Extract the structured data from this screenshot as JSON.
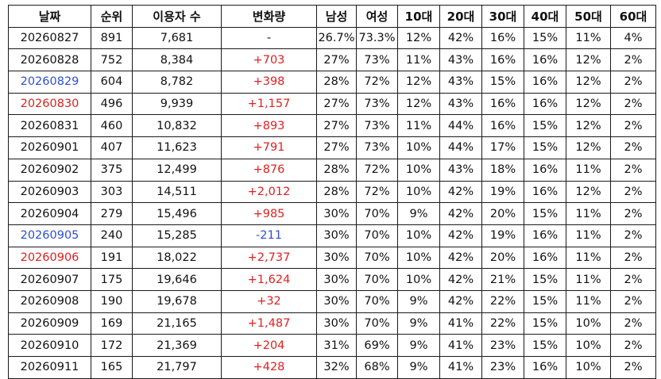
{
  "table": {
    "headers": [
      "날짜",
      "순위",
      "이용자 수",
      "변화량",
      "남성",
      "여성",
      "10대",
      "20대",
      "30대",
      "40대",
      "50대",
      "60대"
    ],
    "rows": [
      {
        "date": "20260827",
        "date_color": "default",
        "rank": "891",
        "users": "7,681",
        "change": "-",
        "change_type": "none",
        "male": "26.7%",
        "female": "73.3%",
        "a10": "12%",
        "a20": "42%",
        "a30": "16%",
        "a40": "15%",
        "a50": "11%",
        "a60": "4%"
      },
      {
        "date": "20260828",
        "date_color": "default",
        "rank": "752",
        "users": "8,384",
        "change": "+703",
        "change_type": "pos",
        "male": "27%",
        "female": "73%",
        "a10": "11%",
        "a20": "43%",
        "a30": "16%",
        "a40": "16%",
        "a50": "12%",
        "a60": "2%"
      },
      {
        "date": "20260829",
        "date_color": "blue",
        "rank": "604",
        "users": "8,782",
        "change": "+398",
        "change_type": "pos",
        "male": "28%",
        "female": "72%",
        "a10": "12%",
        "a20": "43%",
        "a30": "15%",
        "a40": "16%",
        "a50": "12%",
        "a60": "2%"
      },
      {
        "date": "20260830",
        "date_color": "red",
        "rank": "496",
        "users": "9,939",
        "change": "+1,157",
        "change_type": "pos",
        "male": "27%",
        "female": "73%",
        "a10": "12%",
        "a20": "43%",
        "a30": "16%",
        "a40": "16%",
        "a50": "12%",
        "a60": "2%"
      },
      {
        "date": "20260831",
        "date_color": "default",
        "rank": "460",
        "users": "10,832",
        "change": "+893",
        "change_type": "pos",
        "male": "27%",
        "female": "73%",
        "a10": "11%",
        "a20": "44%",
        "a30": "16%",
        "a40": "15%",
        "a50": "12%",
        "a60": "2%"
      },
      {
        "date": "20260901",
        "date_color": "default",
        "rank": "407",
        "users": "11,623",
        "change": "+791",
        "change_type": "pos",
        "male": "27%",
        "female": "73%",
        "a10": "10%",
        "a20": "44%",
        "a30": "17%",
        "a40": "15%",
        "a50": "12%",
        "a60": "2%"
      },
      {
        "date": "20260902",
        "date_color": "default",
        "rank": "375",
        "users": "12,499",
        "change": "+876",
        "change_type": "pos",
        "male": "28%",
        "female": "72%",
        "a10": "10%",
        "a20": "43%",
        "a30": "18%",
        "a40": "16%",
        "a50": "11%",
        "a60": "2%"
      },
      {
        "date": "20260903",
        "date_color": "default",
        "rank": "303",
        "users": "14,511",
        "change": "+2,012",
        "change_type": "pos",
        "male": "28%",
        "female": "72%",
        "a10": "10%",
        "a20": "42%",
        "a30": "19%",
        "a40": "16%",
        "a50": "12%",
        "a60": "2%"
      },
      {
        "date": "20260904",
        "date_color": "default",
        "rank": "279",
        "users": "15,496",
        "change": "+985",
        "change_type": "pos",
        "male": "30%",
        "female": "70%",
        "a10": "9%",
        "a20": "42%",
        "a30": "20%",
        "a40": "15%",
        "a50": "11%",
        "a60": "2%"
      },
      {
        "date": "20260905",
        "date_color": "blue",
        "rank": "240",
        "users": "15,285",
        "change": "-211",
        "change_type": "neg",
        "male": "30%",
        "female": "70%",
        "a10": "10%",
        "a20": "42%",
        "a30": "19%",
        "a40": "16%",
        "a50": "11%",
        "a60": "2%"
      },
      {
        "date": "20260906",
        "date_color": "red",
        "rank": "191",
        "users": "18,022",
        "change": "+2,737",
        "change_type": "pos",
        "male": "30%",
        "female": "70%",
        "a10": "10%",
        "a20": "42%",
        "a30": "20%",
        "a40": "16%",
        "a50": "11%",
        "a60": "2%"
      },
      {
        "date": "20260907",
        "date_color": "default",
        "rank": "175",
        "users": "19,646",
        "change": "+1,624",
        "change_type": "pos",
        "male": "30%",
        "female": "70%",
        "a10": "10%",
        "a20": "42%",
        "a30": "21%",
        "a40": "15%",
        "a50": "11%",
        "a60": "2%"
      },
      {
        "date": "20260908",
        "date_color": "default",
        "rank": "190",
        "users": "19,678",
        "change": "+32",
        "change_type": "pos",
        "male": "30%",
        "female": "70%",
        "a10": "9%",
        "a20": "42%",
        "a30": "22%",
        "a40": "15%",
        "a50": "11%",
        "a60": "2%"
      },
      {
        "date": "20260909",
        "date_color": "default",
        "rank": "169",
        "users": "21,165",
        "change": "+1,487",
        "change_type": "pos",
        "male": "30%",
        "female": "70%",
        "a10": "9%",
        "a20": "41%",
        "a30": "22%",
        "a40": "15%",
        "a50": "10%",
        "a60": "2%"
      },
      {
        "date": "20260910",
        "date_color": "default",
        "rank": "172",
        "users": "21,369",
        "change": "+204",
        "change_type": "pos",
        "male": "31%",
        "female": "69%",
        "a10": "9%",
        "a20": "41%",
        "a30": "23%",
        "a40": "15%",
        "a50": "10%",
        "a60": "2%"
      },
      {
        "date": "20260911",
        "date_color": "default",
        "rank": "165",
        "users": "21,797",
        "change": "+428",
        "change_type": "pos",
        "male": "32%",
        "female": "68%",
        "a10": "9%",
        "a20": "41%",
        "a30": "23%",
        "a40": "16%",
        "a50": "10%",
        "a60": "2%"
      }
    ]
  },
  "colors": {
    "positive_change": "#e02020",
    "negative_change": "#2e4fd1",
    "saturday_date": "#2e4fd1",
    "sunday_date": "#e02020",
    "border": "#1a1a1a"
  }
}
